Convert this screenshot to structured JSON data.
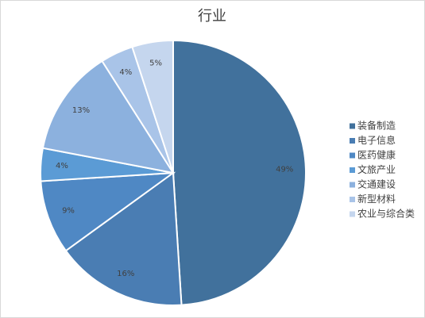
{
  "chart_data": {
    "type": "pie",
    "title": "行业",
    "categories": [
      "装备制造",
      "电子信息",
      "医药健康",
      "文旅产业",
      "交通建设",
      "新型材料",
      "农业与综合类"
    ],
    "values": [
      49,
      16,
      9,
      4,
      13,
      4,
      5
    ],
    "value_labels": [
      "49%",
      "16%",
      "9%",
      "4%",
      "13%",
      "4%",
      "5%"
    ],
    "colors": [
      "#41719c",
      "#4a7db3",
      "#4f88c4",
      "#5b9bd5",
      "#8cb1de",
      "#a9c4e8",
      "#c5d6ee"
    ],
    "legend": "right"
  }
}
